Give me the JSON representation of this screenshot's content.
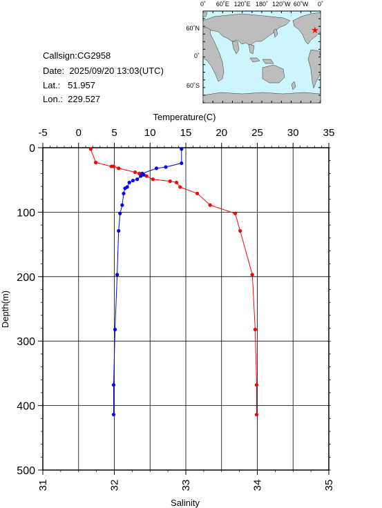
{
  "station": {
    "callsign_label": "Callsign:",
    "callsign": "CG2958",
    "date_label": "Date:",
    "date": "2025/09/20 13:03(UTC)",
    "lat_label": "Lat.:",
    "lat": "51.957",
    "lon_label": "Lon.:",
    "lon": "229.527"
  },
  "map": {
    "top_labels": [
      "0˚",
      "60˚E",
      "120˚E",
      "180˚",
      "120˚W",
      "60˚W",
      "0˚"
    ],
    "left_labels": [
      "60˚N",
      "0˚",
      "60˚S"
    ],
    "ocean_color": "#ccf5fd",
    "land_color": "#bdbdbd",
    "marker_color": "#ff0000"
  },
  "chart_data": {
    "type": "line",
    "top_axis": {
      "label": "Temperature(C)",
      "range": [
        -5,
        35
      ],
      "ticks": [
        -5,
        0,
        5,
        10,
        15,
        20,
        25,
        30,
        35
      ]
    },
    "bottom_axis": {
      "label": "Salinity",
      "range": [
        31,
        35
      ],
      "ticks": [
        31,
        32,
        33,
        34,
        35
      ]
    },
    "y_axis": {
      "label": "Depth(m)",
      "range": [
        0,
        500
      ],
      "inverted": true,
      "ticks": [
        0,
        100,
        200,
        300,
        400,
        500
      ]
    },
    "grid": true,
    "series": [
      {
        "color": "#ff0000",
        "axis": "top",
        "points": [
          [
            1.7,
            2
          ],
          [
            2.4,
            23
          ],
          [
            4.6,
            29
          ],
          [
            4.9,
            29
          ],
          [
            5.6,
            32
          ],
          [
            7.9,
            38
          ],
          [
            8.5,
            40
          ],
          [
            9.5,
            44
          ],
          [
            10.4,
            49
          ],
          [
            12.8,
            52
          ],
          [
            13.7,
            54
          ],
          [
            14.2,
            61
          ],
          [
            16.6,
            71
          ],
          [
            18.4,
            89
          ],
          [
            21.9,
            102
          ],
          [
            22.6,
            129
          ],
          [
            24.3,
            197
          ],
          [
            24.7,
            282
          ],
          [
            24.9,
            368
          ],
          [
            24.9,
            414
          ]
        ]
      },
      {
        "color": "#0000ff",
        "axis": "bottom",
        "points": [
          [
            32.94,
            2
          ],
          [
            32.94,
            24
          ],
          [
            32.72,
            30
          ],
          [
            32.59,
            32
          ],
          [
            32.39,
            40
          ],
          [
            32.41,
            42
          ],
          [
            32.37,
            44
          ],
          [
            32.32,
            49
          ],
          [
            32.26,
            51
          ],
          [
            32.21,
            54
          ],
          [
            32.18,
            61
          ],
          [
            32.15,
            63
          ],
          [
            32.13,
            71
          ],
          [
            32.11,
            89
          ],
          [
            32.08,
            102
          ],
          [
            32.06,
            129
          ],
          [
            32.04,
            197
          ],
          [
            32.01,
            282
          ],
          [
            31.99,
            368
          ],
          [
            31.99,
            414
          ]
        ]
      }
    ]
  }
}
